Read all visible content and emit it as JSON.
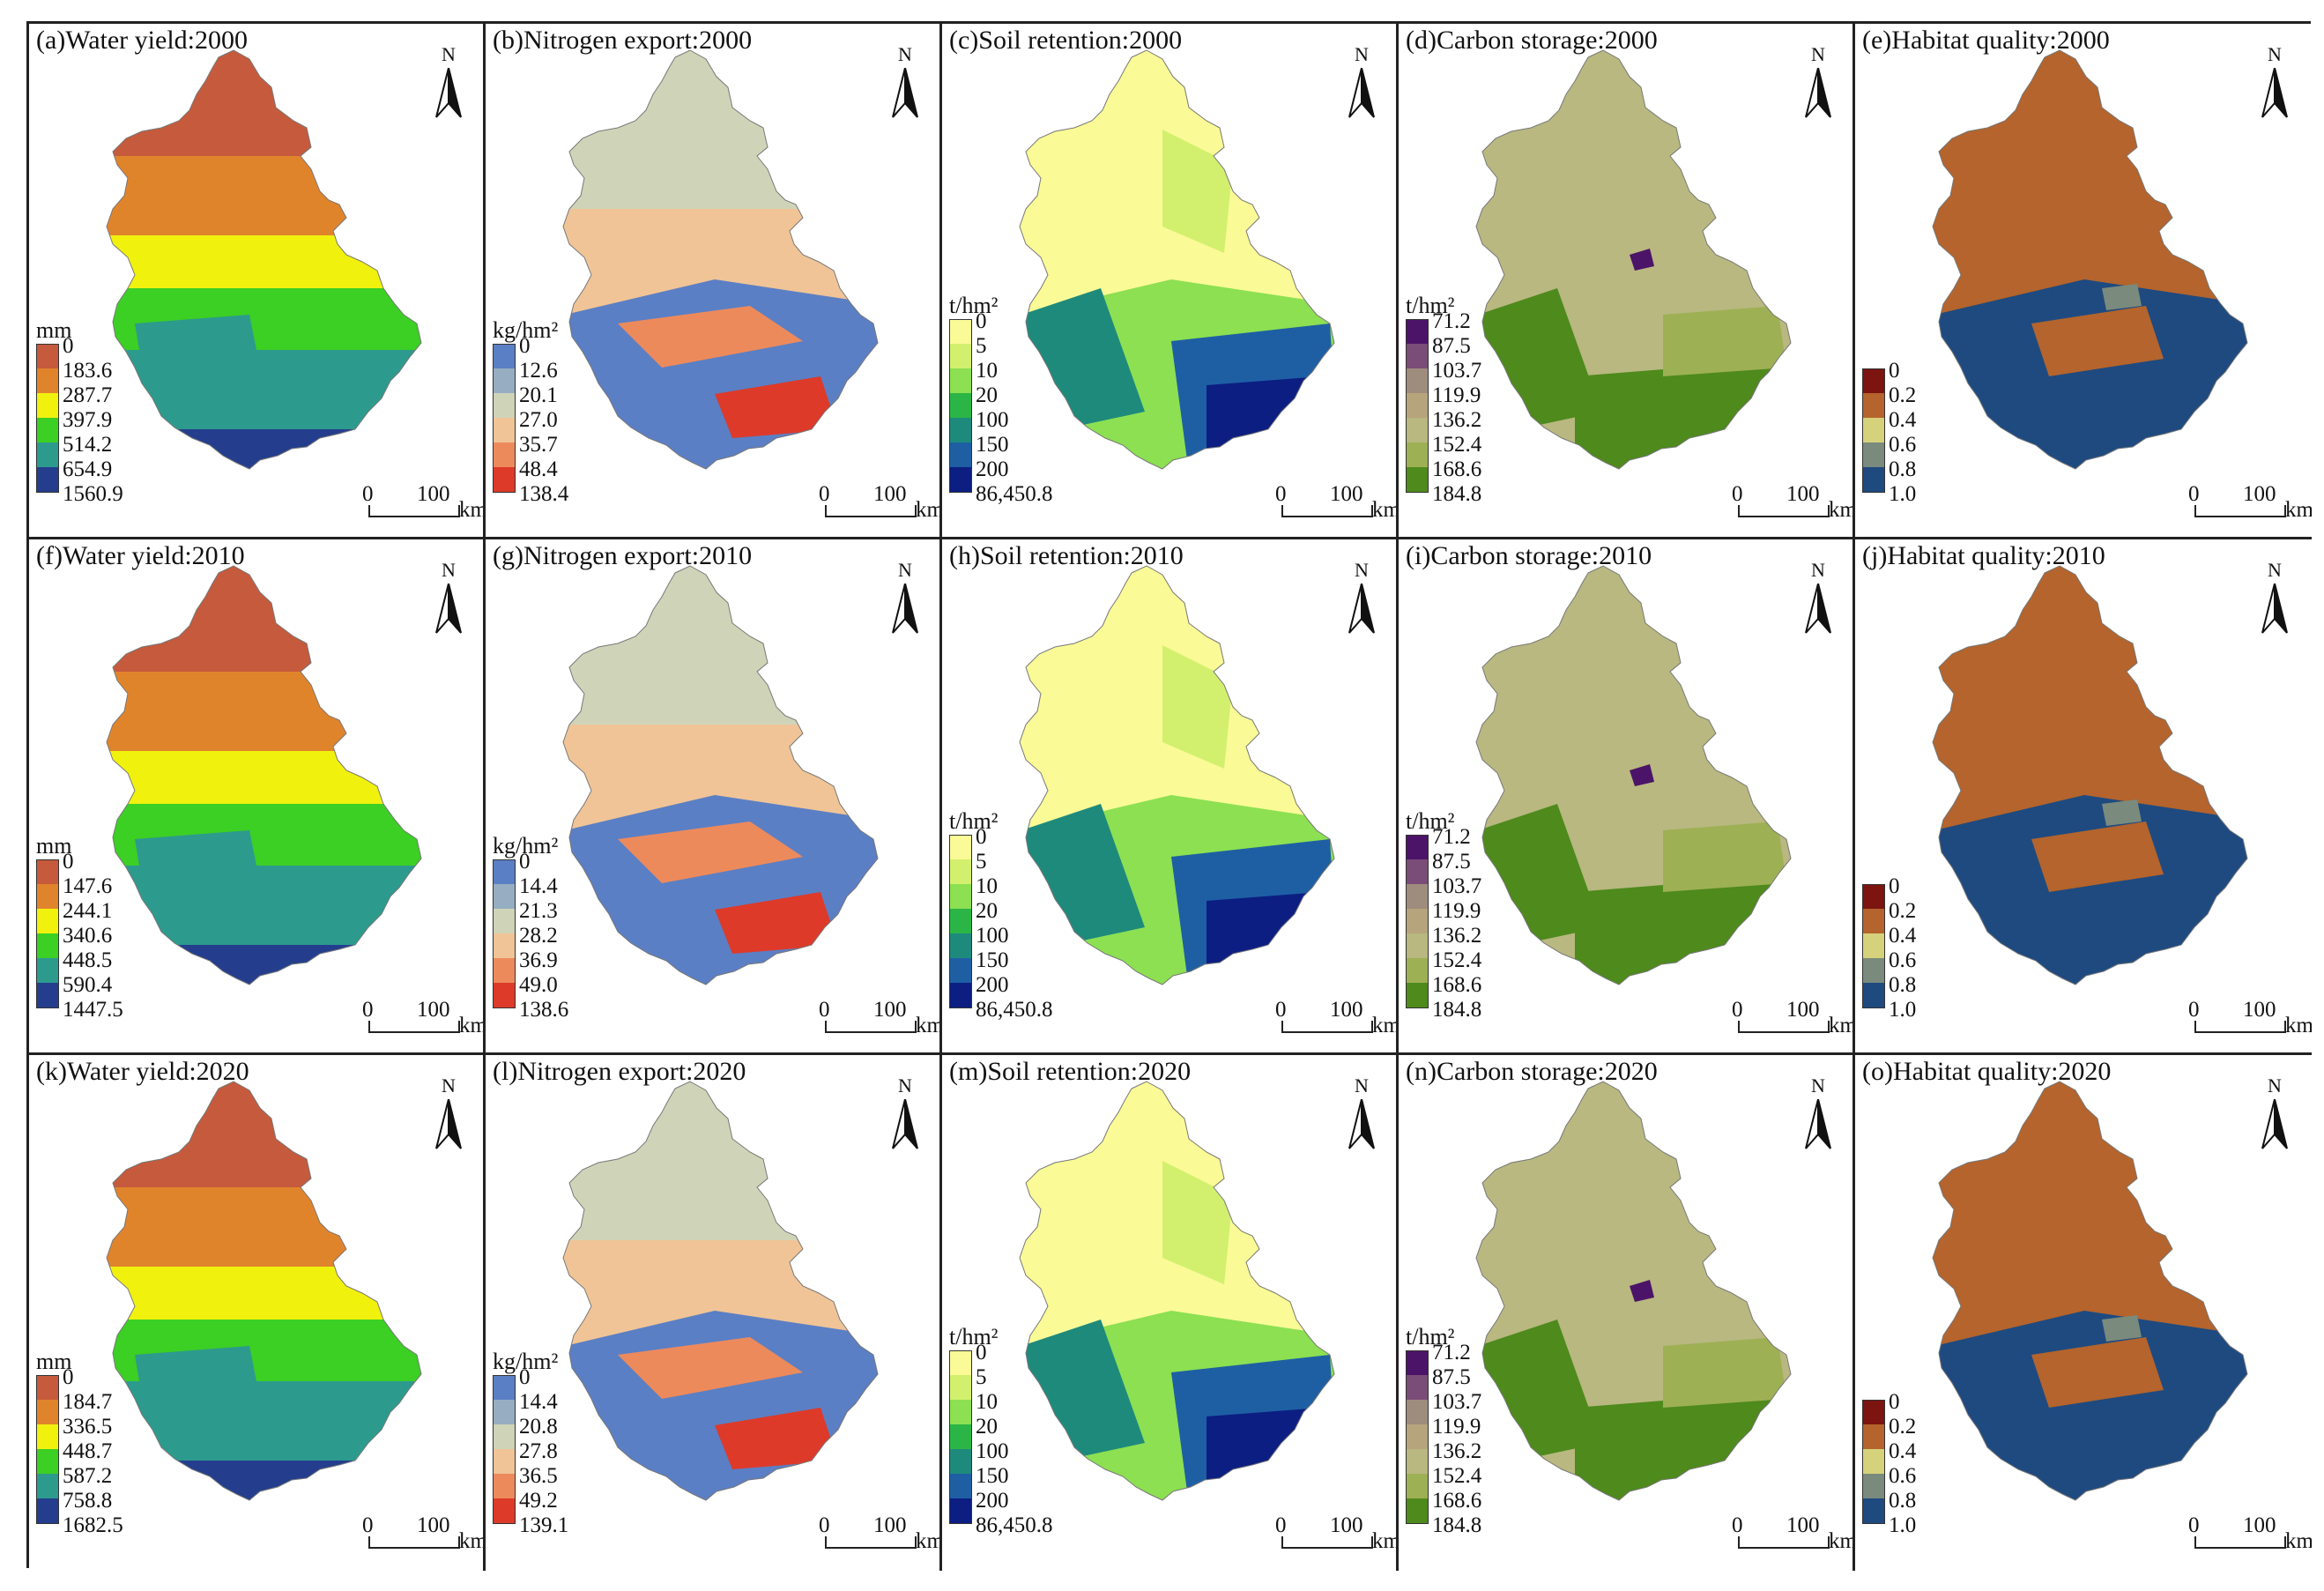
{
  "figure": {
    "north_label": "N",
    "scale": {
      "zero": "0",
      "hundred": "100",
      "unit": "km"
    },
    "panels": [
      {
        "title": "(a)Water yield:2000",
        "type": "water",
        "unit": "mm",
        "legend": [
          "0",
          "183.6",
          "287.7",
          "397.9",
          "514.2",
          "654.9",
          "1560.9"
        ],
        "colors": [
          "#c65a3c",
          "#e0842c",
          "#f1f10e",
          "#3ccf24",
          "#2d9a8e",
          "#243e8d"
        ]
      },
      {
        "title": "(b)Nitrogen export:2000",
        "type": "nitrogen",
        "unit": "kg/hm²",
        "legend": [
          "0",
          "12.6",
          "20.1",
          "27.0",
          "35.7",
          "48.4",
          "138.4"
        ],
        "colors": [
          "#5b7fc4",
          "#97aec2",
          "#cfd4b8",
          "#f0c496",
          "#ed8a5c",
          "#dd3a2a"
        ]
      },
      {
        "title": "(c)Soil retention:2000",
        "type": "soil",
        "unit": "t/hm²",
        "legend": [
          "0",
          "5",
          "10",
          "20",
          "100",
          "150",
          "200",
          "86,450.8"
        ],
        "colors": [
          "#fafa96",
          "#d2f06e",
          "#8ce052",
          "#2bb546",
          "#1e8a7c",
          "#1e5fa4",
          "#0c1e82"
        ]
      },
      {
        "title": "(d)Carbon storage:2000",
        "type": "carbon",
        "unit": "t/hm²",
        "legend": [
          "71.2",
          "87.5",
          "103.7",
          "119.9",
          "136.2",
          "152.4",
          "168.6",
          "184.8"
        ],
        "colors": [
          "#4c1468",
          "#7a4c78",
          "#9e8c7c",
          "#b6a47c",
          "#b8b880",
          "#9eb054",
          "#4e8a1c"
        ]
      },
      {
        "title": "(e)Habitat quality:2000",
        "type": "habitat",
        "unit": "",
        "legend": [
          "0",
          "0.2",
          "0.4",
          "0.6",
          "0.8",
          "1.0"
        ],
        "colors": [
          "#7c1410",
          "#b4642c",
          "#d6d27c",
          "#7a8a7c",
          "#1e4a80"
        ]
      },
      {
        "title": "(f)Water yield:2010",
        "type": "water",
        "unit": "mm",
        "legend": [
          "0",
          "147.6",
          "244.1",
          "340.6",
          "448.5",
          "590.4",
          "1447.5"
        ],
        "colors": [
          "#c65a3c",
          "#e0842c",
          "#f1f10e",
          "#3ccf24",
          "#2d9a8e",
          "#243e8d"
        ]
      },
      {
        "title": "(g)Nitrogen export:2010",
        "type": "nitrogen",
        "unit": "kg/hm²",
        "legend": [
          "0",
          "14.4",
          "21.3",
          "28.2",
          "36.9",
          "49.0",
          "138.6"
        ],
        "colors": [
          "#5b7fc4",
          "#97aec2",
          "#cfd4b8",
          "#f0c496",
          "#ed8a5c",
          "#dd3a2a"
        ]
      },
      {
        "title": "(h)Soil retention:2010",
        "type": "soil",
        "unit": "t/hm²",
        "legend": [
          "0",
          "5",
          "10",
          "20",
          "100",
          "150",
          "200",
          "86,450.8"
        ],
        "colors": [
          "#fafa96",
          "#d2f06e",
          "#8ce052",
          "#2bb546",
          "#1e8a7c",
          "#1e5fa4",
          "#0c1e82"
        ]
      },
      {
        "title": "(i)Carbon storage:2010",
        "type": "carbon",
        "unit": "t/hm²",
        "legend": [
          "71.2",
          "87.5",
          "103.7",
          "119.9",
          "136.2",
          "152.4",
          "168.6",
          "184.8"
        ],
        "colors": [
          "#4c1468",
          "#7a4c78",
          "#9e8c7c",
          "#b6a47c",
          "#b8b880",
          "#9eb054",
          "#4e8a1c"
        ]
      },
      {
        "title": "(j)Habitat quality:2010",
        "type": "habitat",
        "unit": "",
        "legend": [
          "0",
          "0.2",
          "0.4",
          "0.6",
          "0.8",
          "1.0"
        ],
        "colors": [
          "#7c1410",
          "#b4642c",
          "#d6d27c",
          "#7a8a7c",
          "#1e4a80"
        ]
      },
      {
        "title": "(k)Water yield:2020",
        "type": "water",
        "unit": "mm",
        "legend": [
          "0",
          "184.7",
          "336.5",
          "448.7",
          "587.2",
          "758.8",
          "1682.5"
        ],
        "colors": [
          "#c65a3c",
          "#e0842c",
          "#f1f10e",
          "#3ccf24",
          "#2d9a8e",
          "#243e8d"
        ]
      },
      {
        "title": "(l)Nitrogen export:2020",
        "type": "nitrogen",
        "unit": "kg/hm²",
        "legend": [
          "0",
          "14.4",
          "20.8",
          "27.8",
          "36.5",
          "49.2",
          "139.1"
        ],
        "colors": [
          "#5b7fc4",
          "#97aec2",
          "#cfd4b8",
          "#f0c496",
          "#ed8a5c",
          "#dd3a2a"
        ]
      },
      {
        "title": "(m)Soil retention:2020",
        "type": "soil",
        "unit": "t/hm²",
        "legend": [
          "0",
          "5",
          "10",
          "20",
          "100",
          "150",
          "200",
          "86,450.8"
        ],
        "colors": [
          "#fafa96",
          "#d2f06e",
          "#8ce052",
          "#2bb546",
          "#1e8a7c",
          "#1e5fa4",
          "#0c1e82"
        ]
      },
      {
        "title": "(n)Carbon storage:2020",
        "type": "carbon",
        "unit": "t/hm²",
        "legend": [
          "71.2",
          "87.5",
          "103.7",
          "119.9",
          "136.2",
          "152.4",
          "168.6",
          "184.8"
        ],
        "colors": [
          "#4c1468",
          "#7a4c78",
          "#9e8c7c",
          "#b6a47c",
          "#b8b880",
          "#9eb054",
          "#4e8a1c"
        ]
      },
      {
        "title": "(o)Habitat quality:2020",
        "type": "habitat",
        "unit": "",
        "legend": [
          "0",
          "0.2",
          "0.4",
          "0.6",
          "0.8",
          "1.0"
        ],
        "colors": [
          "#7c1410",
          "#b4642c",
          "#d6d27c",
          "#7a8a7c",
          "#1e4a80"
        ]
      }
    ]
  }
}
